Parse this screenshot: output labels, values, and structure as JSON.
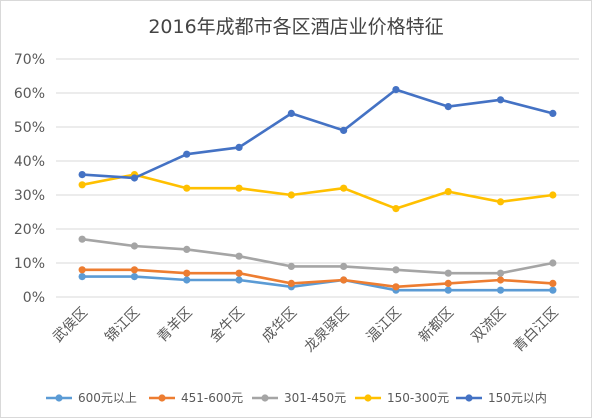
{
  "chart_data": {
    "type": "line",
    "title": "2016年成都市各区酒店业价格特征",
    "categories": [
      "武侯区",
      "锦江区",
      "青羊区",
      "金牛区",
      "成华区",
      "龙泉驿区",
      "温江区",
      "新都区",
      "双流区",
      "青白江区"
    ],
    "y_ticks": [
      "0%",
      "10%",
      "20%",
      "30%",
      "40%",
      "50%",
      "60%",
      "70%"
    ],
    "ylim": [
      0,
      70
    ],
    "y_unit": "%",
    "grid": true,
    "legend_position": "bottom",
    "series": [
      {
        "name": "600元以上",
        "color": "#5b9bd5",
        "values": [
          6,
          6,
          5,
          5,
          3,
          5,
          2,
          2,
          2,
          2
        ]
      },
      {
        "name": "451-600元",
        "color": "#ed7d31",
        "values": [
          8,
          8,
          7,
          7,
          4,
          5,
          3,
          4,
          5,
          4
        ]
      },
      {
        "name": "301-450元",
        "color": "#a5a5a5",
        "values": [
          17,
          15,
          14,
          12,
          9,
          9,
          8,
          7,
          7,
          10
        ]
      },
      {
        "name": "150-300元",
        "color": "#ffc000",
        "values": [
          33,
          36,
          32,
          32,
          30,
          32,
          26,
          31,
          28,
          30
        ]
      },
      {
        "name": "150元以内",
        "color": "#4472c4",
        "values": [
          36,
          35,
          42,
          44,
          54,
          49,
          61,
          56,
          58,
          54
        ]
      }
    ]
  }
}
